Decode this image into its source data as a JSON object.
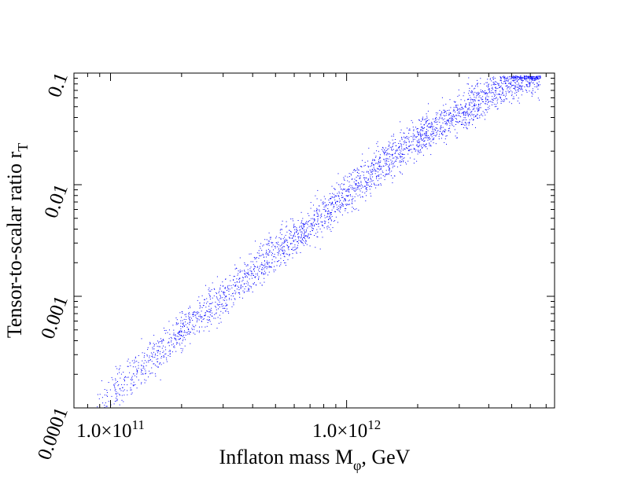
{
  "chart_data": {
    "type": "scatter",
    "title": "",
    "xlabel": {
      "main": "Inflaton mass M",
      "sub": "φ",
      "suffix": ", GeV"
    },
    "ylabel": {
      "main": "Tensor-to-scalar ratio r",
      "sub": "T"
    },
    "xscale": "log",
    "yscale": "log",
    "xlim": [
      70000000000.0,
      7600000000000.0
    ],
    "ylim": [
      0.0001,
      0.1
    ],
    "x_tick_labels": [
      {
        "value": 100000000000.0,
        "mantissa": "1.0×10",
        "exp": "11"
      },
      {
        "value": 1000000000000.0,
        "mantissa": "1.0×10",
        "exp": "12"
      }
    ],
    "y_tick_labels": [
      {
        "value": 0.1,
        "label": "0.1"
      },
      {
        "value": 0.01,
        "label": "0.01"
      },
      {
        "value": 0.001,
        "label": "0.001"
      },
      {
        "value": 0.0001,
        "label": "0.0001"
      }
    ],
    "series_color": "#0000ff",
    "band_center": [
      [
        80000000000.0,
        8.5e-05
      ],
      [
        100000000000.0,
        0.00013
      ],
      [
        150000000000.0,
        0.00028
      ],
      [
        200000000000.0,
        0.0005
      ],
      [
        300000000000.0,
        0.001
      ],
      [
        500000000000.0,
        0.0025
      ],
      [
        800000000000.0,
        0.0055
      ],
      [
        1000000000000.0,
        0.0085
      ],
      [
        1500000000000.0,
        0.017
      ],
      [
        2000000000000.0,
        0.026
      ],
      [
        3000000000000.0,
        0.045
      ],
      [
        4000000000000.0,
        0.065
      ],
      [
        5000000000000.0,
        0.082
      ],
      [
        6000000000000.0,
        0.095
      ]
    ],
    "point_count": 3000
  }
}
